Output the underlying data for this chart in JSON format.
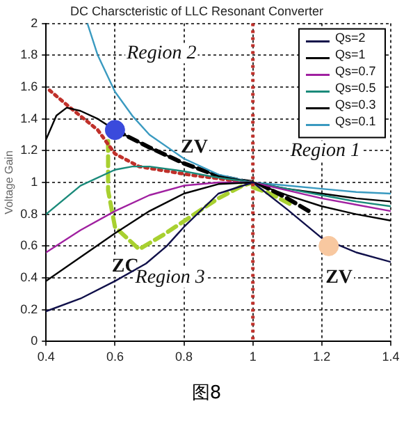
{
  "chart_data": {
    "type": "line",
    "title": "DC Charscteristic of LLC Resonant Converter",
    "ylabel": "Voltage Gain",
    "xlim": [
      0.4,
      1.4
    ],
    "xticks": [
      0.4,
      0.6,
      0.8,
      1,
      1.2,
      1.4
    ],
    "ylim": [
      0,
      2
    ],
    "yticks": [
      0,
      0.2,
      0.4,
      0.6,
      0.8,
      1,
      1.2,
      1.4,
      1.6,
      1.8,
      2
    ],
    "grid": true,
    "legend": "top right",
    "marker": "none",
    "series": [
      {
        "name": "Qs=2",
        "color": "#10104a",
        "x": [
          0.4,
          0.5,
          0.6,
          0.69,
          0.75,
          0.8,
          0.9,
          1,
          1.1,
          1.2,
          1.3,
          1.4
        ],
        "values": [
          0.19,
          0.27,
          0.38,
          0.49,
          0.6,
          0.72,
          0.93,
          1,
          0.83,
          0.65,
          0.56,
          0.5
        ]
      },
      {
        "name": "Qs=1",
        "color": "#000000",
        "x": [
          0.4,
          0.5,
          0.6,
          0.7,
          0.8,
          0.9,
          1,
          1.1,
          1.2,
          1.3,
          1.4
        ],
        "values": [
          0.38,
          0.53,
          0.68,
          0.82,
          0.93,
          0.99,
          1,
          0.92,
          0.85,
          0.8,
          0.76
        ]
      },
      {
        "name": "Qs=0.7",
        "color": "#a020a0",
        "x": [
          0.4,
          0.5,
          0.6,
          0.7,
          0.8,
          0.9,
          1,
          1.1,
          1.2,
          1.3,
          1.4
        ],
        "values": [
          0.56,
          0.7,
          0.82,
          0.92,
          0.98,
          1,
          1,
          0.95,
          0.9,
          0.86,
          0.82
        ]
      },
      {
        "name": "Qs=0.5",
        "color": "#1a8a7a",
        "x": [
          0.4,
          0.5,
          0.6,
          0.65,
          0.7,
          0.8,
          0.9,
          1,
          1.1,
          1.2,
          1.3,
          1.4
        ],
        "values": [
          0.8,
          0.98,
          1.08,
          1.1,
          1.1,
          1.07,
          1.03,
          1,
          0.96,
          0.92,
          0.88,
          0.85
        ]
      },
      {
        "name": "Qs=0.3",
        "color": "#000000",
        "x": [
          0.4,
          0.43,
          0.46,
          0.5,
          0.55,
          0.6,
          0.7,
          0.8,
          0.9,
          1,
          1.1,
          1.2,
          1.3,
          1.4
        ],
        "values": [
          1.27,
          1.42,
          1.47,
          1.45,
          1.4,
          1.33,
          1.22,
          1.12,
          1.04,
          1,
          0.96,
          0.93,
          0.9,
          0.88
        ]
      },
      {
        "name": "Qs=0.1",
        "color": "#3a9ac0",
        "x": [
          0.52,
          0.55,
          0.6,
          0.65,
          0.7,
          0.8,
          0.9,
          1,
          1.1,
          1.2,
          1.3,
          1.4
        ],
        "values": [
          2,
          1.8,
          1.57,
          1.42,
          1.3,
          1.15,
          1.05,
          1,
          0.98,
          0.96,
          0.94,
          0.93
        ]
      },
      {
        "color": "#c0302a",
        "line_style": "dotted",
        "x": [
          0.41,
          0.47,
          0.55,
          0.6,
          0.67,
          0.81,
          0.95,
          1
        ],
        "values": [
          1.58,
          1.47,
          1.33,
          1.18,
          1.1,
          1.05,
          1.01,
          1
        ]
      },
      {
        "color": "#000000",
        "line_style": "dashed",
        "x": [
          0.6,
          0.7,
          0.8,
          0.9,
          0.97,
          1
        ],
        "values": [
          1.33,
          1.22,
          1.12,
          1.04,
          1.01,
          1
        ]
      },
      {
        "color": "#000000",
        "line_style": "dashed",
        "x": [
          1.02,
          1.1,
          1.17
        ],
        "values": [
          0.99,
          0.9,
          0.81
        ]
      },
      {
        "color": "#a8d030",
        "line_style": "dashed",
        "x": [
          0.58,
          0.58,
          0.6,
          0.67,
          0.74,
          0.83,
          0.9,
          0.97,
          1
        ],
        "values": [
          1.26,
          0.95,
          0.72,
          0.58,
          0.67,
          0.8,
          0.9,
          0.98,
          1
        ]
      },
      {
        "color": "#a8d030",
        "line_style": "dashed",
        "x": [
          1,
          1.05,
          1.12
        ],
        "values": [
          0.97,
          0.93,
          0.85
        ]
      },
      {
        "type": "scatter",
        "marker": "circle",
        "color": "#3a4adc",
        "x": [
          0.6
        ],
        "values": [
          1.33
        ]
      },
      {
        "type": "scatter",
        "marker": "circle",
        "color": "#f8c8a0",
        "x": [
          1.22
        ],
        "values": [
          0.6
        ]
      }
    ],
    "ref_lines": [
      {
        "axis": "x",
        "value": 1,
        "color": "#c0302a",
        "line_style": "dotted"
      }
    ],
    "annotations": [
      "Region 2",
      "ZV",
      "Region 1",
      "ZC",
      "Region 3",
      "ZV",
      "图8"
    ]
  }
}
